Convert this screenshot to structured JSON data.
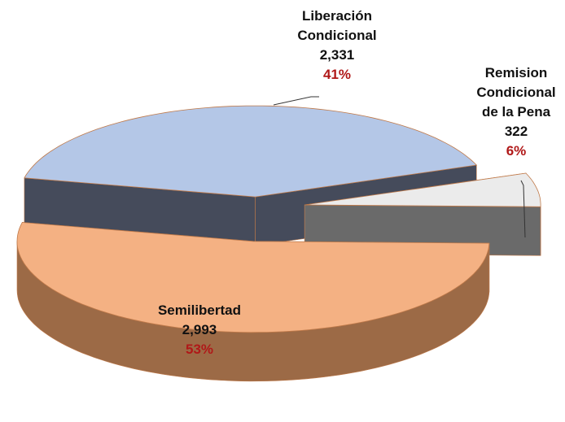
{
  "chart_data": {
    "type": "pie3d",
    "categories": [
      "Liberación Condicional",
      "Remision Condicional de la Pena",
      "Semilibertad"
    ],
    "values": [
      2331,
      322,
      2993
    ],
    "value_labels": [
      "2,331",
      "322",
      "2,993"
    ],
    "percentages": [
      41,
      6,
      53
    ],
    "percent_labels": [
      "41%",
      "6%",
      "53%"
    ],
    "colors": [
      "#b4c7e7",
      "#ebebeb",
      "#f4b183"
    ],
    "side_colors": [
      "#454b5b",
      "#6a6a6a",
      "#9c6a46"
    ]
  }
}
